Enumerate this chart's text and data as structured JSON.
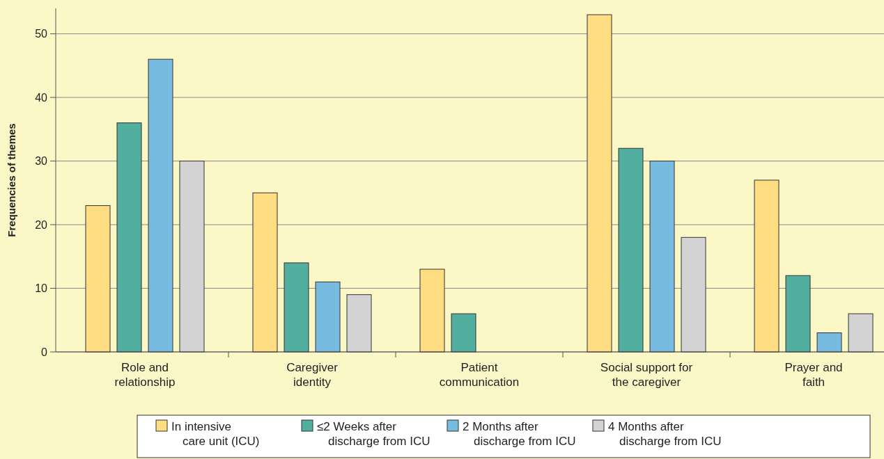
{
  "chart_data": {
    "type": "bar",
    "ylabel": "Frequencies of themes",
    "categories": [
      "Role and\nrelationship",
      "Caregiver\nidentity",
      "Patient\ncommunication",
      "Social support for\nthe caregiver",
      "Prayer and\nfaith"
    ],
    "series": [
      {
        "name": "In intensive\ncare unit (ICU)",
        "color": "#fddc82",
        "values": [
          23,
          25,
          13,
          53,
          27
        ]
      },
      {
        "name": "≤2 Weeks after\ndischarge from ICU",
        "color": "#52ae9f",
        "values": [
          36,
          14,
          6,
          32,
          12
        ]
      },
      {
        "name": "2 Months after\ndischarge from ICU",
        "color": "#78bbe0",
        "values": [
          46,
          11,
          0,
          30,
          3
        ]
      },
      {
        "name": "4 Months after\ndischarge from ICU",
        "color": "#d3d3d3",
        "values": [
          30,
          9,
          0,
          18,
          6
        ]
      }
    ],
    "ylim": [
      0,
      54
    ],
    "yticks": [
      0,
      10,
      20,
      30,
      40,
      50
    ],
    "grid": "y",
    "legend": "bottom"
  }
}
